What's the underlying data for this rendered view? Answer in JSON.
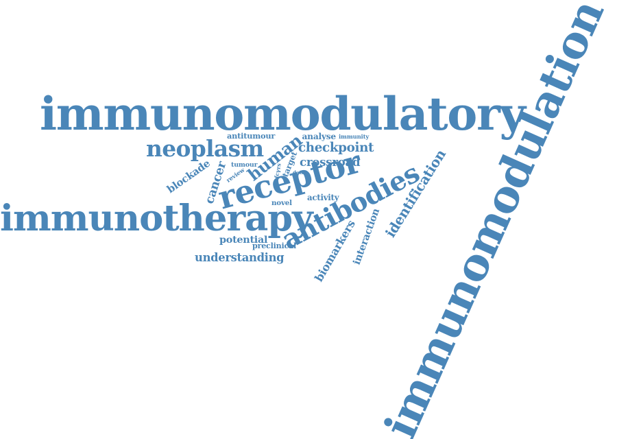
{
  "color": "#4a86b8",
  "words": [
    {
      "id": "immunomodulation",
      "text": "immunomodulation"
    },
    {
      "id": "immunomodulatory",
      "text": "immunomodulatory"
    },
    {
      "id": "immunotherapy",
      "text": "immunotherapy"
    },
    {
      "id": "antibodies",
      "text": "antibodies"
    },
    {
      "id": "receptor",
      "text": "receptor"
    },
    {
      "id": "neoplasm",
      "text": "neoplasm"
    },
    {
      "id": "human",
      "text": "human"
    },
    {
      "id": "identification",
      "text": "identification"
    },
    {
      "id": "checkpoint",
      "text": "checkpoint"
    },
    {
      "id": "cancer",
      "text": "cancer"
    },
    {
      "id": "blockade",
      "text": "blockade"
    },
    {
      "id": "crossroad",
      "text": "crossroad"
    },
    {
      "id": "antitumour",
      "text": "antitumour"
    },
    {
      "id": "analyse",
      "text": "analyse"
    },
    {
      "id": "immunity",
      "text": "immunity"
    },
    {
      "id": "target",
      "text": "target"
    },
    {
      "id": "fcγrs",
      "text": "fcγrs"
    },
    {
      "id": "tumour",
      "text": "tumour"
    },
    {
      "id": "review",
      "text": "review"
    },
    {
      "id": "data",
      "text": "data"
    },
    {
      "id": "novel",
      "text": "novel"
    },
    {
      "id": "activity",
      "text": "activity"
    },
    {
      "id": "interaction",
      "text": "interaction"
    },
    {
      "id": "biomarkers",
      "text": "biomarkers"
    },
    {
      "id": "potential",
      "text": "potential"
    },
    {
      "id": "preclinical",
      "text": "preclinical"
    },
    {
      "id": "understanding",
      "text": "understanding"
    }
  ]
}
